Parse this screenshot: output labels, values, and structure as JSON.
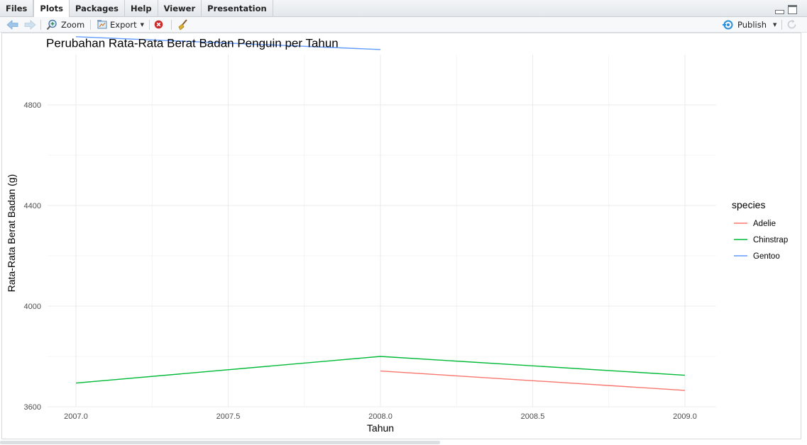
{
  "tabs": [
    {
      "label": "Files",
      "active": false
    },
    {
      "label": "Plots",
      "active": true
    },
    {
      "label": "Packages",
      "active": false
    },
    {
      "label": "Help",
      "active": false
    },
    {
      "label": "Viewer",
      "active": false
    },
    {
      "label": "Presentation",
      "active": false
    }
  ],
  "toolbar": {
    "zoom_label": "Zoom",
    "export_label": "Export",
    "publish_label": "Publish"
  },
  "chart_data": {
    "type": "line",
    "title": "Perubahan Rata-Rata Berat Badan Penguin per Tahun",
    "xlabel": "Tahun",
    "ylabel": "Rata-Rata Berat Badan (g)",
    "xlim": [
      2007.0,
      2009.0
    ],
    "ylim": [
      3600,
      5000
    ],
    "x_ticks": [
      2007.0,
      2007.5,
      2008.0,
      2008.5,
      2009.0
    ],
    "x_tick_labels": [
      "2007.0",
      "2007.5",
      "2008.0",
      "2008.5",
      "2009.0"
    ],
    "y_ticks": [
      3600,
      4000,
      4400,
      4800
    ],
    "y_tick_labels": [
      "3600",
      "4000",
      "4400",
      "4800"
    ],
    "grid": true,
    "legend": {
      "title": "species",
      "position": "right"
    },
    "series": [
      {
        "name": "Adelie",
        "color": "#F8766D",
        "x": [
          2008,
          2009
        ],
        "values": [
          3742,
          3665
        ]
      },
      {
        "name": "Chinstrap",
        "color": "#00BA38",
        "x": [
          2007,
          2008,
          2009
        ],
        "values": [
          3694,
          3800,
          3725
        ]
      },
      {
        "name": "Gentoo",
        "color": "#619CFF",
        "x": [
          2007,
          2008
        ],
        "values": [
          5071,
          5020
        ]
      }
    ]
  }
}
